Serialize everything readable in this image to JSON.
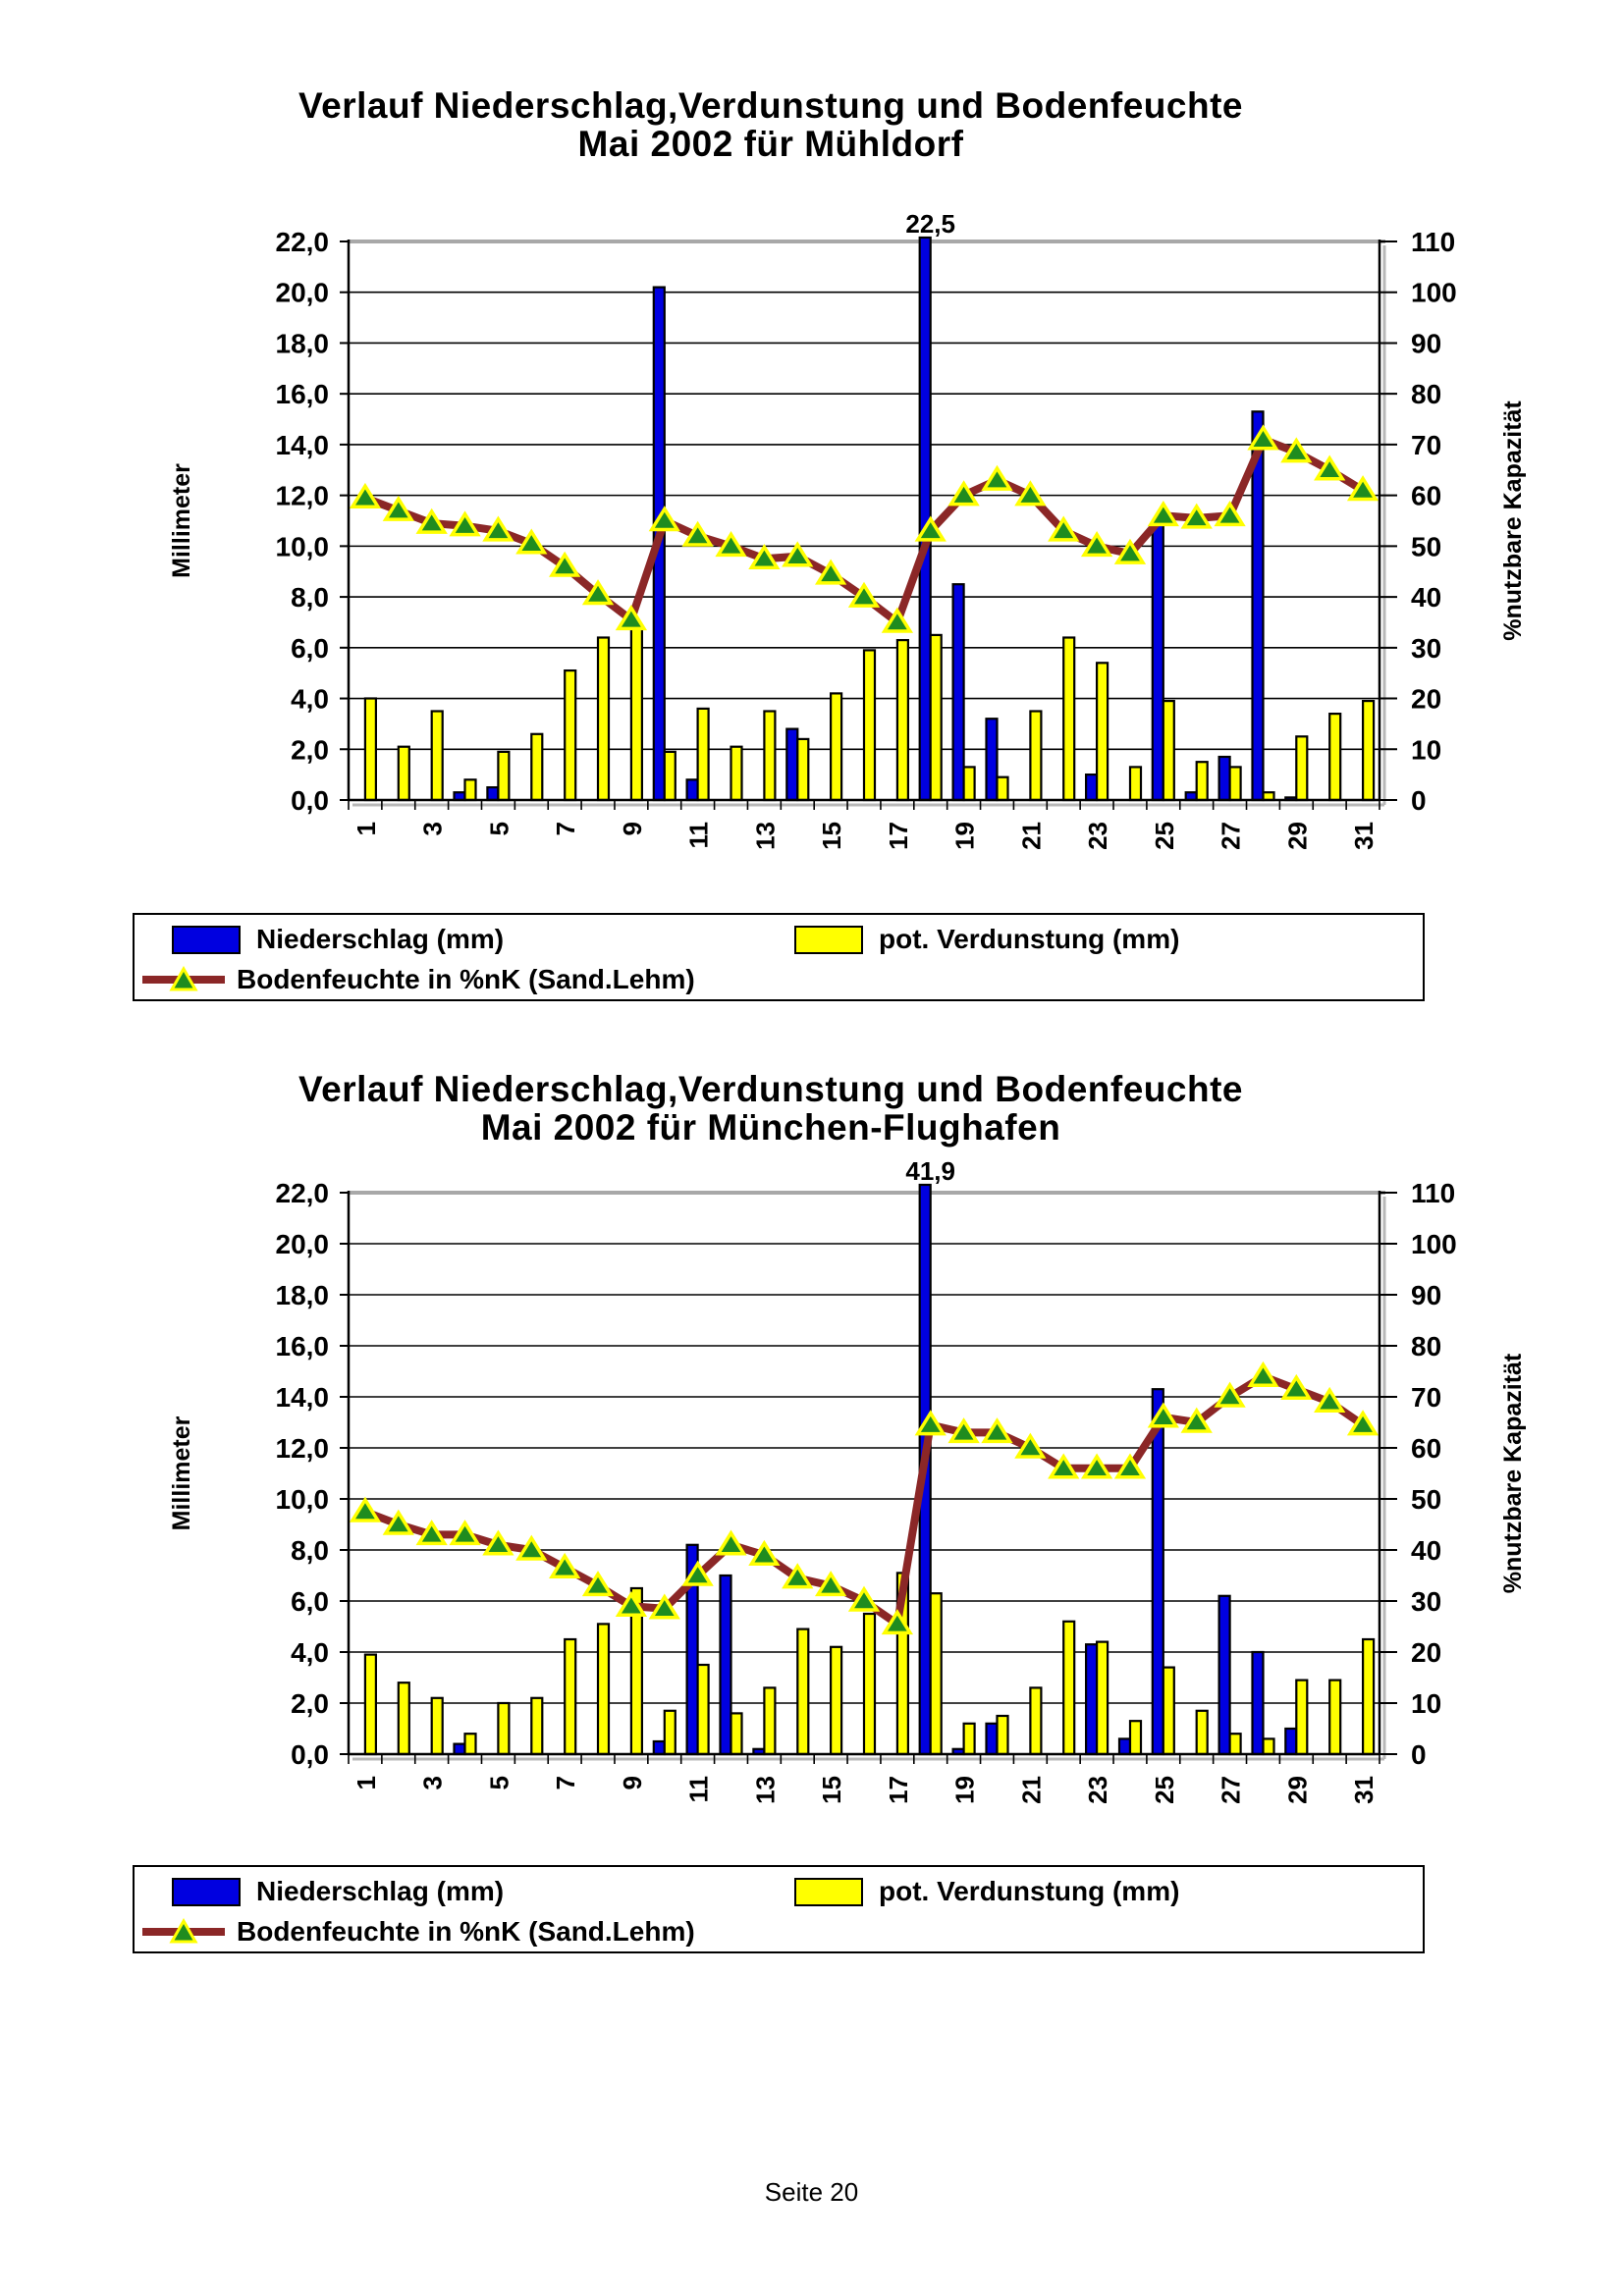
{
  "page": {
    "footer": "Seite 20"
  },
  "legend": {
    "items": [
      {
        "label": "Niederschlag (mm)",
        "swatch": "blue-bar"
      },
      {
        "label": "pot. Verdunstung (mm)",
        "swatch": "yellow-bar"
      },
      {
        "label": "Bodenfeuchte in %nK (Sand.Lehm)",
        "swatch": "darkred-line-with-triangle-marker"
      }
    ]
  },
  "colors": {
    "niederschlag": "#0000e0",
    "verdunstung": "#ffff00",
    "bodenfeuchte_line": "#8b2727",
    "marker_fill": "#1f8c1f",
    "marker_border": "#ffff00",
    "bar_border": "#000000",
    "grid": "#000000",
    "top_grid": "#a8a8a8"
  },
  "chart_data": [
    {
      "type": "bar+line",
      "title": "Verlauf Niederschlag,Verdunstung und Bodenfeuchte",
      "subtitle": "Mai 2002 für Mühldorf",
      "categories": [
        1,
        2,
        3,
        4,
        5,
        6,
        7,
        8,
        9,
        10,
        11,
        12,
        13,
        14,
        15,
        16,
        17,
        18,
        19,
        20,
        21,
        22,
        23,
        24,
        25,
        26,
        27,
        28,
        29,
        30,
        31
      ],
      "x_tick_labels_shown": [
        "1",
        "3",
        "5",
        "7",
        "9",
        "11",
        "13",
        "15",
        "17",
        "19",
        "21",
        "23",
        "25",
        "27",
        "29",
        "31"
      ],
      "ylabel_left": "Millimeter",
      "ylim_left": [
        0,
        22
      ],
      "ytick_step_left": 2,
      "ylabel_right": "%nutzbare Kapazität",
      "ylim_right": [
        0,
        110
      ],
      "ytick_step_right": 10,
      "grid": "horizontal",
      "legend_position": "bottom-box",
      "annotation": {
        "category": 18,
        "text": "22,5"
      },
      "series": [
        {
          "name": "Niederschlag (mm)",
          "type": "bar",
          "axis": "left",
          "values": [
            0,
            0,
            0,
            0.3,
            0.5,
            0,
            0,
            0,
            0,
            20.2,
            0.8,
            0,
            0,
            2.8,
            0,
            0,
            0,
            22.5,
            8.5,
            3.2,
            0,
            0,
            1.0,
            0,
            10.9,
            0.3,
            1.7,
            15.3,
            0.1,
            0,
            0
          ]
        },
        {
          "name": "pot. Verdunstung (mm)",
          "type": "bar",
          "axis": "left",
          "values": [
            4.0,
            2.1,
            3.5,
            0.8,
            1.9,
            2.6,
            5.1,
            6.4,
            6.8,
            1.9,
            3.6,
            2.1,
            3.5,
            2.4,
            4.2,
            5.9,
            6.3,
            6.5,
            1.3,
            0.9,
            3.5,
            6.4,
            5.4,
            1.3,
            3.9,
            1.5,
            1.3,
            0.3,
            2.5,
            3.4,
            3.9
          ]
        },
        {
          "name": "Bodenfeuchte in %nK (Sand.Lehm)",
          "type": "line",
          "axis": "right",
          "values": [
            59.5,
            57,
            54.5,
            54,
            53,
            50.5,
            46,
            40.5,
            35.5,
            55,
            52,
            50,
            47.5,
            48,
            44.5,
            40,
            35,
            53,
            60,
            63,
            60,
            53,
            50,
            48.5,
            56,
            55.5,
            56,
            71,
            68.5,
            65,
            61
          ]
        }
      ]
    },
    {
      "type": "bar+line",
      "title": "Verlauf Niederschlag,Verdunstung und Bodenfeuchte",
      "subtitle": "Mai 2002 für München-Flughafen",
      "categories": [
        1,
        2,
        3,
        4,
        5,
        6,
        7,
        8,
        9,
        10,
        11,
        12,
        13,
        14,
        15,
        16,
        17,
        18,
        19,
        20,
        21,
        22,
        23,
        24,
        25,
        26,
        27,
        28,
        29,
        30,
        31
      ],
      "x_tick_labels_shown": [
        "1",
        "3",
        "5",
        "7",
        "9",
        "11",
        "13",
        "15",
        "17",
        "19",
        "21",
        "23",
        "25",
        "27",
        "29",
        "31"
      ],
      "ylabel_left": "Millimeter",
      "ylim_left": [
        0,
        22
      ],
      "ytick_step_left": 2,
      "ylabel_right": "%nutzbare Kapazität",
      "ylim_right": [
        0,
        110
      ],
      "ytick_step_right": 10,
      "grid": "horizontal",
      "legend_position": "bottom-box",
      "annotation": {
        "category": 18,
        "text": "41,9"
      },
      "series": [
        {
          "name": "Niederschlag (mm)",
          "type": "bar",
          "axis": "left",
          "values": [
            0,
            0,
            0,
            0.4,
            0,
            0,
            0,
            0,
            0,
            0.5,
            8.2,
            7.0,
            0.2,
            0,
            0,
            0,
            0,
            41.9,
            0.2,
            1.2,
            0,
            0,
            4.3,
            0.6,
            14.3,
            0,
            6.2,
            4.0,
            1.0,
            0,
            0
          ]
        },
        {
          "name": "pot. Verdunstung (mm)",
          "type": "bar",
          "axis": "left",
          "values": [
            3.9,
            2.8,
            2.2,
            0.8,
            2.0,
            2.2,
            4.5,
            5.1,
            6.5,
            1.7,
            3.5,
            1.6,
            2.6,
            4.9,
            4.2,
            5.5,
            7.1,
            6.3,
            1.2,
            1.5,
            2.6,
            5.2,
            4.4,
            1.3,
            3.4,
            1.7,
            0.8,
            0.6,
            2.9,
            2.9,
            4.5
          ]
        },
        {
          "name": "Bodenfeuchte in %nK (Sand.Lehm)",
          "type": "line",
          "axis": "right",
          "values": [
            47.5,
            45,
            43,
            43,
            41,
            40,
            36.5,
            33,
            29,
            28.5,
            35,
            41,
            39,
            34.5,
            33,
            30,
            25.5,
            64.5,
            63,
            63,
            60,
            56,
            56,
            56,
            66,
            65,
            70,
            74,
            71.5,
            69,
            64.5
          ]
        }
      ]
    }
  ]
}
